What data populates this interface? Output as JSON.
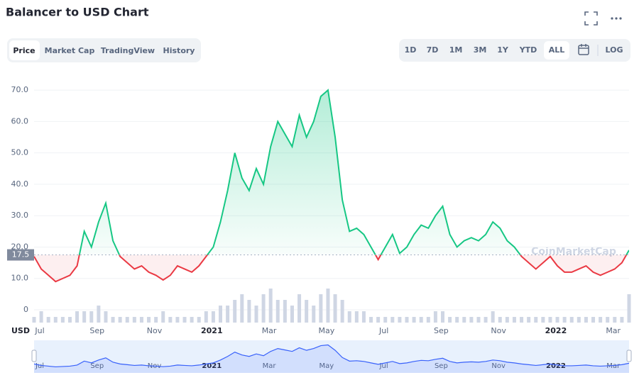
{
  "header": {
    "title": "Balancer to USD Chart"
  },
  "tabs": [
    "Price",
    "Market Cap",
    "TradingView",
    "History"
  ],
  "ranges": [
    "1D",
    "7D",
    "1M",
    "3M",
    "1Y",
    "YTD",
    "ALL"
  ],
  "log_button": "LOG",
  "watermark": "CoinMarketCap",
  "chart_data": {
    "type": "line",
    "currency": "USD",
    "categories": [
      "Jul",
      null,
      null,
      null,
      null,
      null,
      null,
      null,
      "Sep",
      null,
      null,
      null,
      null,
      null,
      null,
      null,
      "Nov",
      null,
      null,
      null,
      null,
      null,
      null,
      null,
      "2021",
      null,
      null,
      null,
      null,
      null,
      null,
      null,
      "Mar",
      null,
      null,
      null,
      null,
      null,
      null,
      null,
      "May",
      null,
      null,
      null,
      null,
      null,
      null,
      null,
      "Jul",
      null,
      null,
      null,
      null,
      null,
      null,
      null,
      "Sep",
      null,
      null,
      null,
      null,
      null,
      null,
      null,
      "Nov",
      null,
      null,
      null,
      null,
      null,
      null,
      null,
      "2022",
      null,
      null,
      null,
      null,
      null,
      null,
      null,
      "Mar",
      null,
      null,
      null
    ],
    "values": [
      17,
      13,
      11,
      9,
      10,
      11,
      14,
      25,
      20,
      28,
      34,
      22,
      17,
      15,
      13,
      14,
      12,
      11,
      9.5,
      11,
      14,
      13,
      12,
      14,
      17,
      20,
      28,
      38,
      50,
      42,
      38,
      45,
      40,
      52,
      60,
      56,
      52,
      62,
      55,
      60,
      68,
      70,
      55,
      35,
      25,
      26,
      24,
      20,
      16,
      20,
      24,
      18,
      20,
      24,
      27,
      26,
      30,
      33,
      24,
      20,
      22,
      23,
      22,
      24,
      28,
      26,
      22,
      20,
      17,
      15,
      13,
      15,
      17,
      14,
      12,
      12,
      13,
      14,
      12,
      11,
      12,
      13,
      15,
      19
    ],
    "volume": [
      1,
      2,
      1,
      1,
      1,
      1,
      2,
      2,
      2,
      3,
      2,
      1,
      1,
      1,
      1,
      1,
      1,
      1,
      2,
      1,
      1,
      1,
      1,
      1,
      2,
      2,
      3,
      3,
      4,
      5,
      4,
      3,
      5,
      6,
      4,
      4,
      3,
      5,
      4,
      3,
      5,
      6,
      5,
      4,
      2,
      2,
      2,
      1,
      1,
      1,
      1,
      1,
      1,
      1,
      1,
      1,
      2,
      2,
      1,
      1,
      1,
      1,
      1,
      1,
      2,
      1,
      1,
      1,
      1,
      1,
      1,
      1,
      1,
      1,
      1,
      1,
      1,
      1,
      1,
      1,
      1,
      1,
      1,
      5
    ],
    "baseline": 17.5,
    "up_color": "#16c784",
    "down_color": "#ea3943",
    "ylim": [
      0,
      75
    ],
    "yticks": [
      0,
      {
        "value": 10,
        "label": "10.0"
      },
      {
        "value": 20,
        "label": "20.0"
      },
      {
        "value": 30,
        "label": "30.0"
      },
      {
        "value": 40,
        "label": "40.0"
      },
      {
        "value": 50,
        "label": "50.0"
      },
      {
        "value": 60,
        "label": "60.0"
      },
      {
        "value": 70,
        "label": "70.0"
      }
    ],
    "grid": true
  }
}
